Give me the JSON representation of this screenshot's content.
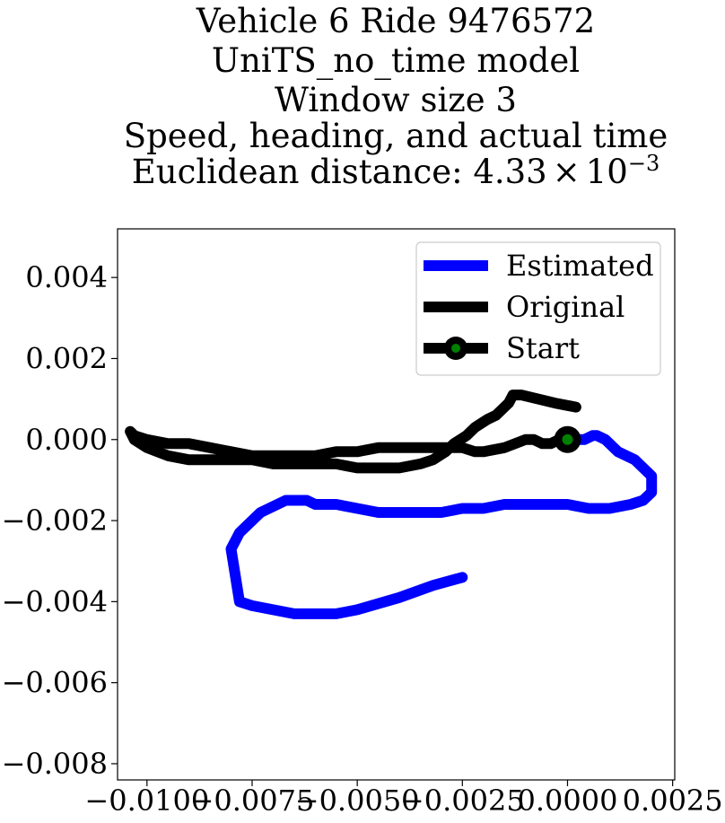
{
  "chart_data": {
    "type": "line",
    "title_lines": [
      "Vehicle 6 Ride 9476572",
      "UniTS_no_time model",
      "Window size 3",
      "Speed, heading, and actual time",
      "Euclidean distance: "
    ],
    "title_distance": {
      "mantissa": "4.33",
      "times": "×",
      "base": "10",
      "exponent": "−3"
    },
    "xlim": [
      -0.0107,
      0.00255
    ],
    "ylim": [
      -0.0084,
      0.0052
    ],
    "x_ticks": [
      -0.01,
      -0.0075,
      -0.005,
      -0.0025,
      0.0,
      0.0025
    ],
    "x_tick_labels": [
      "−0.0100",
      "−0.0075",
      "−0.0050",
      "−0.0025",
      "0.0000",
      "0.0025"
    ],
    "y_ticks": [
      0.004,
      0.002,
      0.0,
      -0.002,
      -0.004,
      -0.006,
      -0.008
    ],
    "y_tick_labels": [
      "0.004",
      "0.002",
      "0.000",
      "−0.002",
      "−0.004",
      "−0.006",
      "−0.008"
    ],
    "grid": false,
    "legend_position": "top-right",
    "series": [
      {
        "name": "Estimated",
        "color": "#0000ff",
        "x": [
          -0.0025,
          -0.0032,
          -0.004,
          -0.005,
          -0.0055,
          -0.006,
          -0.0065,
          -0.007,
          -0.0075,
          -0.0078,
          -0.008,
          -0.0078,
          -0.0073,
          -0.0067,
          -0.0062,
          -0.006,
          -0.0055,
          -0.005,
          -0.0045,
          -0.004,
          -0.0035,
          -0.003,
          -0.0025,
          -0.002,
          -0.0015,
          -0.001,
          -0.0005,
          0.0,
          0.0005,
          0.001,
          0.0015,
          0.0018,
          0.002,
          0.002,
          0.0016,
          0.0012,
          0.0009,
          0.0007,
          0.0006,
          0.0004,
          0.0002,
          0.0
        ],
        "y": [
          -0.0034,
          -0.0036,
          -0.0039,
          -0.0042,
          -0.0043,
          -0.0043,
          -0.0043,
          -0.0042,
          -0.0041,
          -0.004,
          -0.0027,
          -0.0023,
          -0.0018,
          -0.0015,
          -0.0015,
          -0.0016,
          -0.0016,
          -0.0017,
          -0.0018,
          -0.0018,
          -0.0018,
          -0.0018,
          -0.0017,
          -0.0017,
          -0.0016,
          -0.0016,
          -0.0016,
          -0.0016,
          -0.0017,
          -0.0017,
          -0.0016,
          -0.0015,
          -0.0013,
          -0.0009,
          -0.0005,
          -0.0003,
          0.0,
          0.0001,
          0.0001,
          0.0,
          0.0,
          0.0
        ]
      },
      {
        "name": "Original",
        "color": "#000000",
        "x": [
          0.0002,
          -0.0003,
          -0.0007,
          -0.0011,
          -0.0013,
          -0.0014,
          -0.0015,
          -0.0017,
          -0.0019,
          -0.0022,
          -0.0024,
          -0.0027,
          -0.0029,
          -0.0032,
          -0.0035,
          -0.004,
          -0.0045,
          -0.005,
          -0.0055,
          -0.006,
          -0.0065,
          -0.007,
          -0.0075,
          -0.008,
          -0.0085,
          -0.009,
          -0.0095,
          -0.01,
          -0.0103,
          -0.0104,
          -0.0103,
          -0.01,
          -0.0095,
          -0.009,
          -0.0085,
          -0.008,
          -0.0075,
          -0.007,
          -0.0065,
          -0.006,
          -0.0055,
          -0.005,
          -0.0045,
          -0.004,
          -0.0035,
          -0.003,
          -0.0025,
          -0.0022,
          -0.002,
          -0.0015,
          -0.001,
          -0.0008,
          -0.0006,
          -0.0004,
          -0.0002,
          0.0
        ],
        "y": [
          0.0008,
          0.0009,
          0.001,
          0.0011,
          0.0011,
          0.0009,
          0.0008,
          0.0006,
          0.0005,
          0.0003,
          0.0001,
          -0.0001,
          -0.0003,
          -0.0005,
          -0.0006,
          -0.0007,
          -0.0007,
          -0.0007,
          -0.0006,
          -0.0006,
          -0.0006,
          -0.0006,
          -0.0005,
          -0.0005,
          -0.0005,
          -0.0005,
          -0.0004,
          -0.0002,
          0.0,
          0.0002,
          0.0001,
          0.0,
          -0.0001,
          -0.0001,
          -0.0002,
          -0.0003,
          -0.0004,
          -0.0004,
          -0.0004,
          -0.0004,
          -0.0003,
          -0.0003,
          -0.0002,
          -0.0002,
          -0.0002,
          -0.0002,
          -0.0002,
          -0.0003,
          -0.0003,
          -0.0002,
          0.0,
          0.0,
          -0.0001,
          -0.0001,
          0.0,
          0.0
        ]
      },
      {
        "name": "Start",
        "color": "#000000",
        "marker_face": "#008000",
        "x": [
          0.0
        ],
        "y": [
          0.0
        ]
      }
    ]
  }
}
